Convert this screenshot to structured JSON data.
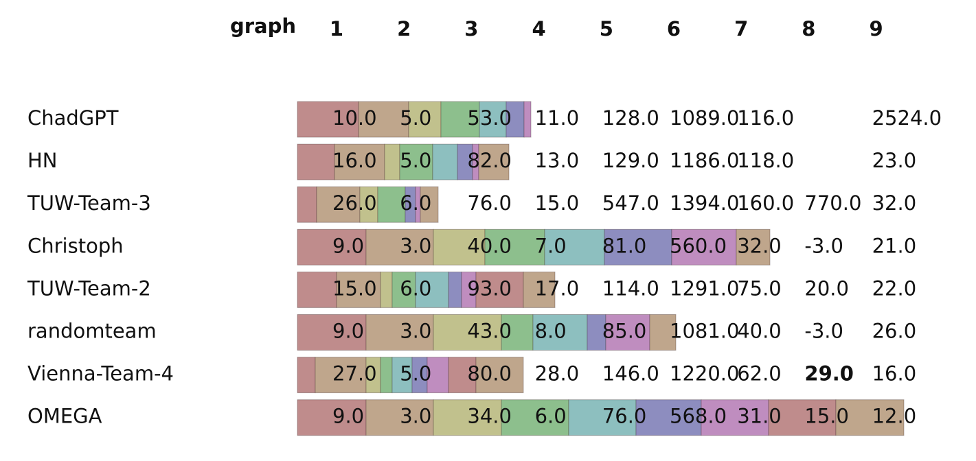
{
  "header": {
    "title": "graph",
    "columns": [
      1,
      2,
      3,
      4,
      5,
      6,
      7,
      8,
      9
    ]
  },
  "table": {
    "rows": [
      {
        "name": "ChadGPT",
        "values": [
          "10.0",
          "5.0",
          "53.0",
          "11.0",
          "128.0",
          "1089.0",
          "116.0",
          null,
          "2524.0"
        ]
      },
      {
        "name": "HN",
        "values": [
          "16.0",
          "5.0",
          "82.0",
          "13.0",
          "129.0",
          "1186.0",
          "118.0",
          null,
          "23.0"
        ]
      },
      {
        "name": "TUW-Team-3",
        "values": [
          "26.0",
          "6.0",
          "76.0",
          "15.0",
          "547.0",
          "1394.0",
          "160.0",
          "770.0",
          "32.0"
        ]
      },
      {
        "name": "Christoph",
        "values": [
          "9.0",
          "3.0",
          "40.0",
          "7.0",
          "81.0",
          "560.0",
          "32.0",
          "-3.0",
          "21.0"
        ]
      },
      {
        "name": "TUW-Team-2",
        "values": [
          "15.0",
          "6.0",
          "93.0",
          "17.0",
          "114.0",
          "1291.0",
          "75.0",
          "20.0",
          "22.0"
        ]
      },
      {
        "name": "randomteam",
        "values": [
          "9.0",
          "3.0",
          "43.0",
          "8.0",
          "85.0",
          "1081.0",
          "40.0",
          "-3.0",
          "26.0"
        ]
      },
      {
        "name": "Vienna-Team-4",
        "values": [
          "27.0",
          "5.0",
          "80.0",
          "28.0",
          "146.0",
          "1220.0",
          "62.0",
          "29.0",
          "16.0"
        ]
      },
      {
        "name": "OMEGA",
        "values": [
          "9.0",
          "3.0",
          "34.0",
          "6.0",
          "76.0",
          "568.0",
          "31.0",
          "15.0",
          "12.0"
        ]
      }
    ]
  }
}
